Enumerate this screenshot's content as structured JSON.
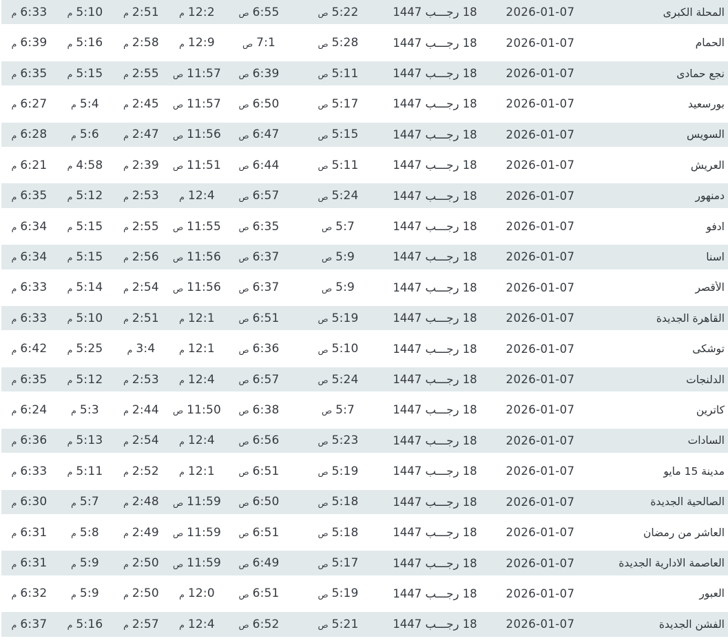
{
  "colors": {
    "stripe_row_background": "#e1e9eb",
    "plain_row_background": "#ffffff",
    "time_text": "#363b41",
    "city_text": "#2e3338"
  },
  "rows": [
    {
      "city": "المحلة الكبرى",
      "gregorian": "2026-01-07",
      "hijri": "18 رجـــب 1447",
      "fajr": "5:22 ص",
      "sunrise": "6:55 ص",
      "dhuhr": "12:2 م",
      "asr": "2:51 م",
      "maghrib": "5:10 م",
      "isha": "6:33 م"
    },
    {
      "city": "الحمام",
      "gregorian": "2026-01-07",
      "hijri": "18 رجـــب 1447",
      "fajr": "5:28 ص",
      "sunrise": "7:1 ص",
      "dhuhr": "12:9 م",
      "asr": "2:58 م",
      "maghrib": "5:16 م",
      "isha": "6:39 م"
    },
    {
      "city": "نجع حمادى",
      "gregorian": "2026-01-07",
      "hijri": "18 رجـــب 1447",
      "fajr": "5:11 ص",
      "sunrise": "6:39 ص",
      "dhuhr": "11:57 ص",
      "asr": "2:55 م",
      "maghrib": "5:15 م",
      "isha": "6:35 م"
    },
    {
      "city": "بورسعيد",
      "gregorian": "2026-01-07",
      "hijri": "18 رجـــب 1447",
      "fajr": "5:17 ص",
      "sunrise": "6:50 ص",
      "dhuhr": "11:57 ص",
      "asr": "2:45 م",
      "maghrib": "5:4 م",
      "isha": "6:27 م"
    },
    {
      "city": "السويس",
      "gregorian": "2026-01-07",
      "hijri": "18 رجـــب 1447",
      "fajr": "5:15 ص",
      "sunrise": "6:47 ص",
      "dhuhr": "11:56 ص",
      "asr": "2:47 م",
      "maghrib": "5:6 م",
      "isha": "6:28 م"
    },
    {
      "city": "العريش",
      "gregorian": "2026-01-07",
      "hijri": "18 رجـــب 1447",
      "fajr": "5:11 ص",
      "sunrise": "6:44 ص",
      "dhuhr": "11:51 ص",
      "asr": "2:39 م",
      "maghrib": "4:58 م",
      "isha": "6:21 م"
    },
    {
      "city": "دمنهور",
      "gregorian": "2026-01-07",
      "hijri": "18 رجـــب 1447",
      "fajr": "5:24 ص",
      "sunrise": "6:57 ص",
      "dhuhr": "12:4 م",
      "asr": "2:53 م",
      "maghrib": "5:12 م",
      "isha": "6:35 م"
    },
    {
      "city": "ادفو",
      "gregorian": "2026-01-07",
      "hijri": "18 رجـــب 1447",
      "fajr": "5:7 ص",
      "sunrise": "6:35 ص",
      "dhuhr": "11:55 ص",
      "asr": "2:55 م",
      "maghrib": "5:15 م",
      "isha": "6:34 م"
    },
    {
      "city": "اسنا",
      "gregorian": "2026-01-07",
      "hijri": "18 رجـــب 1447",
      "fajr": "5:9 ص",
      "sunrise": "6:37 ص",
      "dhuhr": "11:56 ص",
      "asr": "2:56 م",
      "maghrib": "5:15 م",
      "isha": "6:34 م"
    },
    {
      "city": "الأقصر",
      "gregorian": "2026-01-07",
      "hijri": "18 رجـــب 1447",
      "fajr": "5:9 ص",
      "sunrise": "6:37 ص",
      "dhuhr": "11:56 ص",
      "asr": "2:54 م",
      "maghrib": "5:14 م",
      "isha": "6:33 م"
    },
    {
      "city": "القاهرة الجديدة",
      "gregorian": "2026-01-07",
      "hijri": "18 رجـــب 1447",
      "fajr": "5:19 ص",
      "sunrise": "6:51 ص",
      "dhuhr": "12:1 م",
      "asr": "2:51 م",
      "maghrib": "5:10 م",
      "isha": "6:33 م"
    },
    {
      "city": "توشكى",
      "gregorian": "2026-01-07",
      "hijri": "18 رجـــب 1447",
      "fajr": "5:10 ص",
      "sunrise": "6:36 ص",
      "dhuhr": "12:1 م",
      "asr": "3:4 م",
      "maghrib": "5:25 م",
      "isha": "6:42 م"
    },
    {
      "city": "الدلنجات",
      "gregorian": "2026-01-07",
      "hijri": "18 رجـــب 1447",
      "fajr": "5:24 ص",
      "sunrise": "6:57 ص",
      "dhuhr": "12:4 م",
      "asr": "2:53 م",
      "maghrib": "5:12 م",
      "isha": "6:35 م"
    },
    {
      "city": "كاترين",
      "gregorian": "2026-01-07",
      "hijri": "18 رجـــب 1447",
      "fajr": "5:7 ص",
      "sunrise": "6:38 ص",
      "dhuhr": "11:50 ص",
      "asr": "2:44 م",
      "maghrib": "5:3 م",
      "isha": "6:24 م"
    },
    {
      "city": "السادات",
      "gregorian": "2026-01-07",
      "hijri": "18 رجـــب 1447",
      "fajr": "5:23 ص",
      "sunrise": "6:56 ص",
      "dhuhr": "12:4 م",
      "asr": "2:54 م",
      "maghrib": "5:13 م",
      "isha": "6:36 م"
    },
    {
      "city": "مدينة 15 مايو",
      "gregorian": "2026-01-07",
      "hijri": "18 رجـــب 1447",
      "fajr": "5:19 ص",
      "sunrise": "6:51 ص",
      "dhuhr": "12:1 م",
      "asr": "2:52 م",
      "maghrib": "5:11 م",
      "isha": "6:33 م"
    },
    {
      "city": "الصالحية الجديدة",
      "gregorian": "2026-01-07",
      "hijri": "18 رجـــب 1447",
      "fajr": "5:18 ص",
      "sunrise": "6:50 ص",
      "dhuhr": "11:59 ص",
      "asr": "2:48 م",
      "maghrib": "5:7 م",
      "isha": "6:30 م"
    },
    {
      "city": "العاشر من رمضان",
      "gregorian": "2026-01-07",
      "hijri": "18 رجـــب 1447",
      "fajr": "5:18 ص",
      "sunrise": "6:51 ص",
      "dhuhr": "11:59 ص",
      "asr": "2:49 م",
      "maghrib": "5:8 م",
      "isha": "6:31 م"
    },
    {
      "city": "العاصمة الادارية الجديدة",
      "gregorian": "2026-01-07",
      "hijri": "18 رجـــب 1447",
      "fajr": "5:17 ص",
      "sunrise": "6:49 ص",
      "dhuhr": "11:59 ص",
      "asr": "2:50 م",
      "maghrib": "5:9 م",
      "isha": "6:31 م"
    },
    {
      "city": "العبور",
      "gregorian": "2026-01-07",
      "hijri": "18 رجـــب 1447",
      "fajr": "5:19 ص",
      "sunrise": "6:51 ص",
      "dhuhr": "12:0 م",
      "asr": "2:50 م",
      "maghrib": "5:9 م",
      "isha": "6:32 م"
    },
    {
      "city": "الفشن الجديدة",
      "gregorian": "2026-01-07",
      "hijri": "18 رجـــب 1447",
      "fajr": "5:21 ص",
      "sunrise": "6:52 ص",
      "dhuhr": "12:4 م",
      "asr": "2:57 م",
      "maghrib": "5:16 م",
      "isha": "6:37 م"
    }
  ]
}
